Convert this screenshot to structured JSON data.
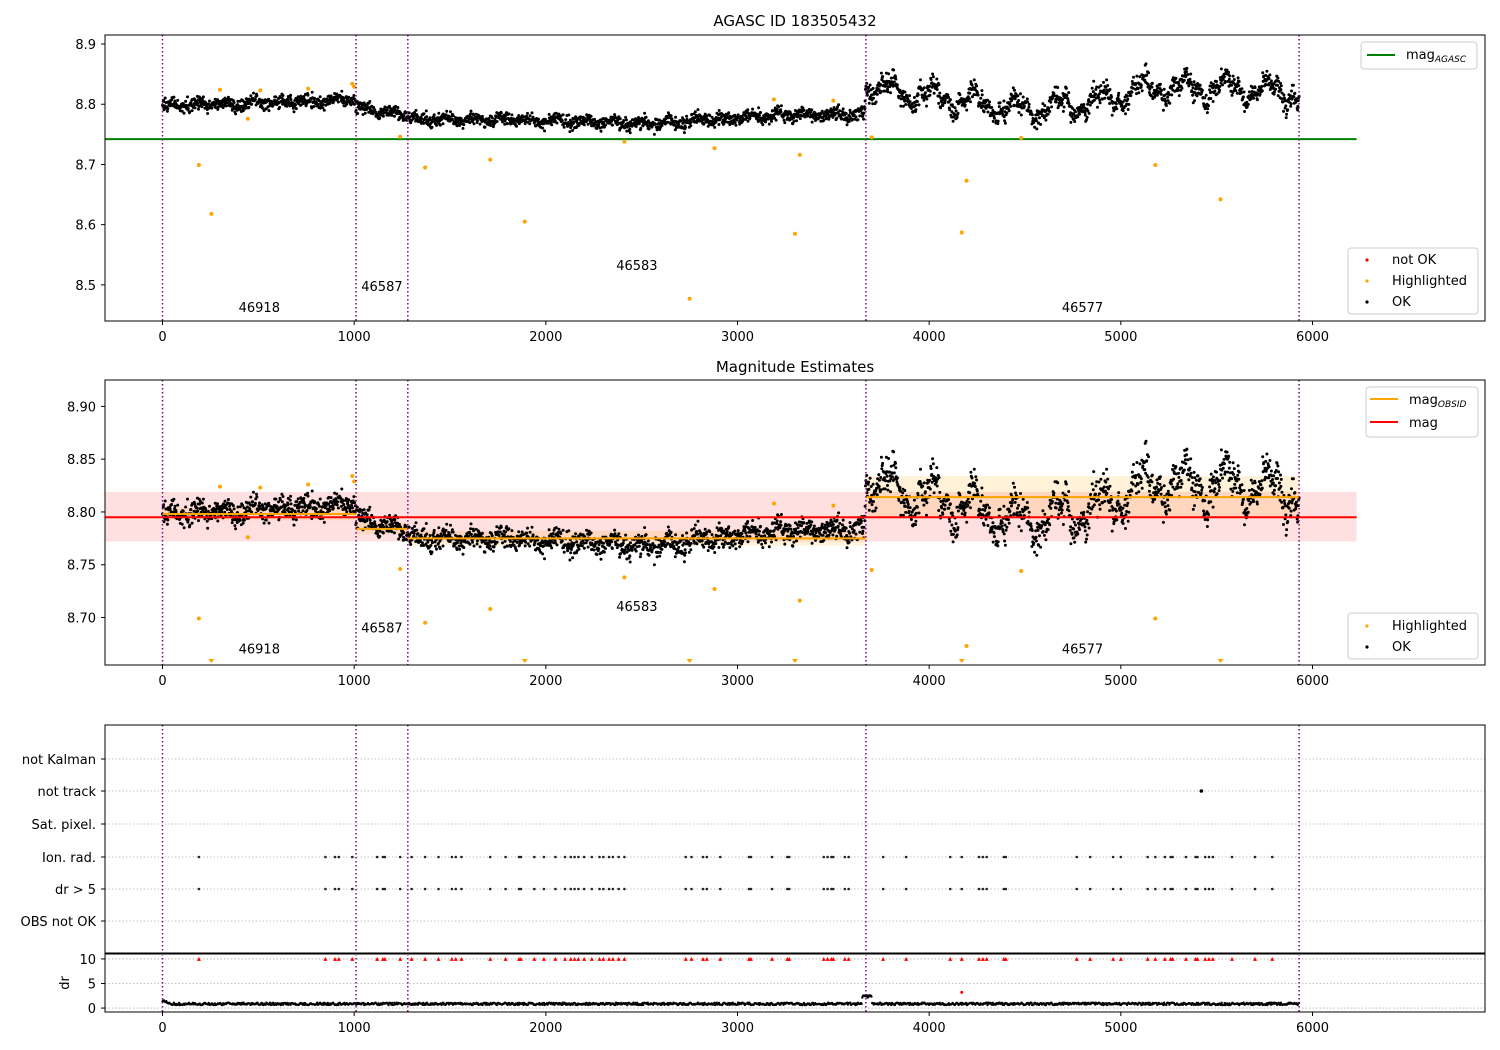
{
  "chart_data": [
    {
      "type": "scatter",
      "title": "AGASC ID 183505432",
      "xlim": [
        -300,
        6900
      ],
      "ylim": [
        8.44,
        8.915
      ],
      "xticks": [
        0,
        1000,
        2000,
        3000,
        4000,
        5000,
        6000
      ],
      "yticks": [
        8.5,
        8.6,
        8.7,
        8.8,
        8.9
      ],
      "obsid_boundaries": [
        0,
        1010,
        1280,
        3670,
        5930
      ],
      "obsid_labels": [
        {
          "text": "46918",
          "x": 505,
          "y": 8.455
        },
        {
          "text": "46587",
          "x": 1145,
          "y": 8.49
        },
        {
          "text": "46583",
          "x": 2475,
          "y": 8.525
        },
        {
          "text": "46577",
          "x": 4800,
          "y": 8.455
        }
      ],
      "mag_agasc": {
        "value": 8.742,
        "x": [
          -300,
          6230
        ]
      },
      "series_baseline": [
        {
          "x": 0,
          "y": 8.797
        },
        {
          "x": 1000,
          "y": 8.808
        },
        {
          "x": 1010,
          "y": 8.792
        },
        {
          "x": 1280,
          "y": 8.782
        },
        {
          "x": 1300,
          "y": 8.775
        },
        {
          "x": 2000,
          "y": 8.773
        },
        {
          "x": 2500,
          "y": 8.768
        },
        {
          "x": 3200,
          "y": 8.782
        },
        {
          "x": 3660,
          "y": 8.783
        },
        {
          "x": 3670,
          "y": 8.828
        },
        {
          "x": 3900,
          "y": 8.818
        },
        {
          "x": 4200,
          "y": 8.805
        },
        {
          "x": 4500,
          "y": 8.79
        },
        {
          "x": 4900,
          "y": 8.805
        },
        {
          "x": 5100,
          "y": 8.825
        },
        {
          "x": 5600,
          "y": 8.828
        },
        {
          "x": 5930,
          "y": 8.815
        }
      ],
      "highlighted_points": [
        {
          "x": 190,
          "y": 8.699
        },
        {
          "x": 255,
          "y": 8.618
        },
        {
          "x": 300,
          "y": 8.824
        },
        {
          "x": 445,
          "y": 8.776
        },
        {
          "x": 510,
          "y": 8.823
        },
        {
          "x": 760,
          "y": 8.826
        },
        {
          "x": 990,
          "y": 8.834
        },
        {
          "x": 1000,
          "y": 8.829
        },
        {
          "x": 1240,
          "y": 8.746
        },
        {
          "x": 1370,
          "y": 8.695
        },
        {
          "x": 1710,
          "y": 8.708
        },
        {
          "x": 1890,
          "y": 8.605
        },
        {
          "x": 2410,
          "y": 8.738
        },
        {
          "x": 2750,
          "y": 8.477
        },
        {
          "x": 2880,
          "y": 8.727
        },
        {
          "x": 3190,
          "y": 8.808
        },
        {
          "x": 3300,
          "y": 8.585
        },
        {
          "x": 3325,
          "y": 8.716
        },
        {
          "x": 3500,
          "y": 8.806
        },
        {
          "x": 3700,
          "y": 8.745
        },
        {
          "x": 4170,
          "y": 8.587
        },
        {
          "x": 4195,
          "y": 8.673
        },
        {
          "x": 4480,
          "y": 8.744
        },
        {
          "x": 5180,
          "y": 8.699
        },
        {
          "x": 5520,
          "y": 8.642
        }
      ],
      "legend_top": [
        "magAGASC"
      ],
      "legend_bottom": [
        "not OK",
        "Highlighted",
        "OK"
      ]
    },
    {
      "type": "scatter",
      "title": "Magnitude Estimates",
      "xlim": [
        -300,
        6900
      ],
      "ylim": [
        8.655,
        8.925
      ],
      "xticks": [
        0,
        1000,
        2000,
        3000,
        4000,
        5000,
        6000
      ],
      "yticks": [
        8.7,
        8.75,
        8.8,
        8.85,
        8.9
      ],
      "ytick_labels": [
        "8.70",
        "8.75",
        "8.80",
        "8.85",
        "8.90"
      ],
      "obsid_labels": [
        {
          "text": "46918",
          "x": 505,
          "y": 8.666
        },
        {
          "text": "46587",
          "x": 1145,
          "y": 8.686
        },
        {
          "text": "46583",
          "x": 2475,
          "y": 8.706
        },
        {
          "text": "46577",
          "x": 4800,
          "y": 8.666
        }
      ],
      "mag": {
        "value": 8.795,
        "band": [
          8.772,
          8.819
        ],
        "x": [
          -300,
          6230
        ]
      },
      "mag_obsid": [
        {
          "x": [
            0,
            1010
          ],
          "value": 8.798,
          "band": [
            8.792,
            8.804
          ]
        },
        {
          "x": [
            1010,
            1280
          ],
          "value": 8.784,
          "band": [
            8.779,
            8.79
          ]
        },
        {
          "x": [
            1280,
            3670
          ],
          "value": 8.775,
          "band": [
            8.768,
            8.782
          ]
        },
        {
          "x": [
            3670,
            5930
          ],
          "value": 8.814,
          "band": [
            8.794,
            8.834
          ]
        }
      ],
      "out_of_range_x": [
        255,
        1890,
        2750,
        3300,
        4170,
        5520
      ],
      "legend_top": [
        "magOBSID",
        "mag"
      ],
      "legend_bottom": [
        "Highlighted",
        "OK"
      ]
    },
    {
      "type": "scatter",
      "title": "",
      "xlim": [
        -300,
        6900
      ],
      "flag_labels": [
        "not Kalman",
        "not track",
        "Sat. pixel.",
        "Ion. rad.",
        "dr > 5",
        "OBS not OK"
      ],
      "flag_events_x": [
        190,
        850,
        900,
        920,
        990,
        1120,
        1150,
        1160,
        1240,
        1300,
        1370,
        1440,
        1510,
        1530,
        1560,
        1710,
        1790,
        1860,
        1870,
        1940,
        1990,
        2050,
        2100,
        2130,
        2150,
        2170,
        2200,
        2240,
        2280,
        2300,
        2330,
        2350,
        2380,
        2410,
        2730,
        2760,
        2820,
        2840,
        2910,
        3060,
        3070,
        3180,
        3260,
        3270,
        3450,
        3470,
        3490,
        3500,
        3560,
        3580,
        3760,
        3880,
        4110,
        4170,
        4260,
        4280,
        4300,
        4390,
        4400,
        4770,
        4840,
        4960,
        5000,
        5140,
        5180,
        5230,
        5260,
        5270,
        5340,
        5390,
        5400,
        5440,
        5460,
        5480,
        5580,
        5700,
        5790
      ],
      "not_track_x": [
        5420
      ],
      "dr_yticks": [
        0,
        5,
        10
      ],
      "dr_ylabel": "dr",
      "xticks": [
        0,
        1000,
        2000,
        3000,
        4000,
        5000,
        6000
      ],
      "dr_spike": {
        "x": 4170,
        "y": 3.2
      }
    }
  ]
}
